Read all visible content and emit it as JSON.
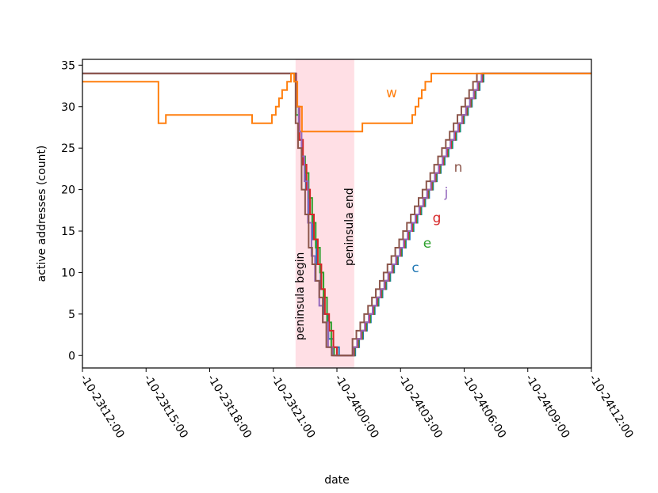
{
  "chart_data": {
    "type": "step",
    "xlabel": "date",
    "ylabel": "active addresses (count)",
    "xlim": [
      "-10-23t12:00",
      "-10-24t12:00"
    ],
    "xticks": [
      "-10-23t12:00",
      "-10-23t15:00",
      "-10-23t18:00",
      "-10-23t21:00",
      "-10-24t00:00",
      "-10-24t03:00",
      "-10-24t06:00",
      "-10-24t09:00",
      "-10-24t12:00"
    ],
    "ylim": [
      -1.5,
      35.7
    ],
    "yticks": [
      0,
      5,
      10,
      15,
      20,
      25,
      30,
      35
    ],
    "span_color": "#ffc0cb",
    "annotations": [
      {
        "text": "peninsula begin",
        "x": "-10-23t22:03"
      },
      {
        "text": "peninsula end",
        "x": "-10-24t00:49"
      }
    ],
    "series": [
      {
        "name": "c",
        "color": "#1f77b4",
        "x": [
          "-10-23t12:00",
          "-10-23t22:04",
          "-10-23t22:12",
          "-10-23t22:22",
          "-10-23t22:32",
          "-10-23t22:42",
          "-10-23t22:52",
          "-10-23t23:02",
          "-10-23t23:14",
          "-10-23t23:24",
          "-10-23t23:36",
          "-10-23t23:50",
          "-10-24t00:06",
          "-10-24t00:52",
          "-10-24t01:03",
          "-10-24t01:14",
          "-10-24t01:25",
          "-10-24t01:36",
          "-10-24t01:47",
          "-10-24t01:58",
          "-10-24t02:09",
          "-10-24t02:20",
          "-10-24t02:31",
          "-10-24t02:42",
          "-10-24t02:53",
          "-10-24t03:04",
          "-10-24t03:15",
          "-10-24t03:26",
          "-10-24t03:37",
          "-10-24t03:48",
          "-10-24t03:59",
          "-10-24t04:10",
          "-10-24t04:21",
          "-10-24t04:32",
          "-10-24t04:43",
          "-10-24t04:54",
          "-10-24t05:05",
          "-10-24t05:16",
          "-10-24t05:27",
          "-10-24t05:38",
          "-10-24t05:49",
          "-10-24t06:00",
          "-10-24t06:11",
          "-10-24t06:22",
          "-10-24t06:33",
          "-10-24t06:44",
          "-10-24t06:55",
          "-10-24t12:00"
        ],
        "values": [
          34,
          30,
          26,
          23,
          20,
          17,
          14,
          11,
          8,
          5,
          2,
          1,
          0,
          1,
          2,
          3,
          4,
          5,
          6,
          7,
          8,
          9,
          10,
          11,
          12,
          13,
          14,
          15,
          16,
          17,
          18,
          19,
          20,
          21,
          22,
          23,
          24,
          25,
          26,
          27,
          28,
          29,
          30,
          31,
          32,
          33,
          34,
          34
        ]
      },
      {
        "name": "e",
        "color": "#2ca02c",
        "x": [
          "-10-23t12:00",
          "-10-23t22:04",
          "-10-23t22:13",
          "-10-23t22:22",
          "-10-23t22:30",
          "-10-23t22:40",
          "-10-23t22:50",
          "-10-23t23:00",
          "-10-23t23:12",
          "-10-23t23:22",
          "-10-23t23:32",
          "-10-23t23:44",
          "-10-23t23:52",
          "-10-24t00:50",
          "-10-24t01:01",
          "-10-24t01:12",
          "-10-24t01:23",
          "-10-24t01:34",
          "-10-24t01:45",
          "-10-24t01:56",
          "-10-24t02:07",
          "-10-24t02:18",
          "-10-24t02:29",
          "-10-24t02:40",
          "-10-24t02:51",
          "-10-24t03:02",
          "-10-24t03:13",
          "-10-24t03:24",
          "-10-24t03:35",
          "-10-24t03:46",
          "-10-24t03:57",
          "-10-24t04:08",
          "-10-24t04:19",
          "-10-24t04:30",
          "-10-24t04:41",
          "-10-24t04:52",
          "-10-24t05:03",
          "-10-24t05:14",
          "-10-24t05:25",
          "-10-24t05:36",
          "-10-24t05:47",
          "-10-24t05:58",
          "-10-24t06:09",
          "-10-24t06:20",
          "-10-24t06:31",
          "-10-24t06:42",
          "-10-24t06:53",
          "-10-24t12:00"
        ],
        "values": [
          34,
          29,
          26,
          24,
          22,
          19,
          16,
          13,
          10,
          7,
          4,
          1,
          0,
          1,
          2,
          3,
          4,
          5,
          6,
          7,
          8,
          9,
          10,
          11,
          12,
          13,
          14,
          15,
          16,
          17,
          18,
          19,
          20,
          21,
          22,
          23,
          24,
          25,
          26,
          27,
          28,
          29,
          30,
          31,
          32,
          33,
          34,
          34
        ]
      },
      {
        "name": "g",
        "color": "#d62728",
        "x": [
          "-10-23t12:00",
          "-10-23t22:05",
          "-10-23t22:14",
          "-10-23t22:24",
          "-10-23t22:34",
          "-10-23t22:44",
          "-10-23t22:55",
          "-10-23t23:06",
          "-10-23t23:16",
          "-10-23t23:26",
          "-10-23t23:38",
          "-10-23t23:50",
          "-10-24t00:00",
          "-10-24t00:48",
          "-10-24t00:59",
          "-10-24t01:10",
          "-10-24t01:21",
          "-10-24t01:32",
          "-10-24t01:43",
          "-10-24t01:54",
          "-10-24t02:05",
          "-10-24t02:16",
          "-10-24t02:27",
          "-10-24t02:38",
          "-10-24t02:49",
          "-10-24t03:00",
          "-10-24t03:11",
          "-10-24t03:22",
          "-10-24t03:33",
          "-10-24t03:44",
          "-10-24t03:55",
          "-10-24t04:06",
          "-10-24t04:17",
          "-10-24t04:28",
          "-10-24t04:39",
          "-10-24t04:50",
          "-10-24t05:01",
          "-10-24t05:12",
          "-10-24t05:23",
          "-10-24t05:34",
          "-10-24t05:45",
          "-10-24t05:56",
          "-10-24t06:07",
          "-10-24t06:18",
          "-10-24t06:29",
          "-10-24t06:40",
          "-10-24t06:51",
          "-10-24t12:00"
        ],
        "values": [
          34,
          30,
          26,
          23,
          20,
          17,
          14,
          11,
          8,
          5,
          3,
          1,
          0,
          1,
          2,
          3,
          4,
          5,
          6,
          7,
          8,
          9,
          10,
          11,
          12,
          13,
          14,
          15,
          16,
          17,
          18,
          19,
          20,
          21,
          22,
          23,
          24,
          25,
          26,
          27,
          28,
          29,
          30,
          31,
          32,
          33,
          34,
          34
        ]
      },
      {
        "name": "j",
        "color": "#9467bd",
        "x": [
          "-10-23t12:00",
          "-10-23t22:04",
          "-10-23t22:12",
          "-10-23t22:20",
          "-10-23t22:28",
          "-10-23t22:38",
          "-10-23t22:48",
          "-10-23t22:58",
          "-10-23t23:10",
          "-10-23t23:20",
          "-10-23t23:35",
          "-10-23t23:48",
          "-10-24t00:46",
          "-10-24t00:57",
          "-10-24t01:08",
          "-10-24t01:19",
          "-10-24t01:30",
          "-10-24t01:41",
          "-10-24t01:52",
          "-10-24t02:03",
          "-10-24t02:14",
          "-10-24t02:25",
          "-10-24t02:36",
          "-10-24t02:47",
          "-10-24t02:58",
          "-10-24t03:09",
          "-10-24t03:20",
          "-10-24t03:31",
          "-10-24t03:42",
          "-10-24t03:53",
          "-10-24t04:04",
          "-10-24t04:15",
          "-10-24t04:26",
          "-10-24t04:37",
          "-10-24t04:48",
          "-10-24t04:59",
          "-10-24t05:10",
          "-10-24t05:21",
          "-10-24t05:32",
          "-10-24t05:43",
          "-10-24t05:54",
          "-10-24t06:05",
          "-10-24t06:16",
          "-10-24t06:27",
          "-10-24t06:38",
          "-10-24t06:49",
          "-10-24t12:00"
        ],
        "values": [
          34,
          30,
          27,
          24,
          21,
          16,
          12,
          9,
          6,
          4,
          1,
          0,
          1,
          2,
          3,
          4,
          5,
          6,
          7,
          8,
          9,
          10,
          11,
          12,
          13,
          14,
          15,
          16,
          17,
          18,
          19,
          20,
          21,
          22,
          23,
          24,
          25,
          26,
          27,
          28,
          29,
          30,
          31,
          32,
          33,
          34,
          34
        ]
      },
      {
        "name": "n",
        "color": "#8c564b",
        "x": [
          "-10-23t12:00",
          "-10-23t22:03",
          "-10-23t22:10",
          "-10-23t22:20",
          "-10-23t22:30",
          "-10-23t22:40",
          "-10-23t22:50",
          "-10-23t23:00",
          "-10-23t23:10",
          "-10-23t23:20",
          "-10-23t23:30",
          "-10-23t23:45",
          "-10-24t00:44",
          "-10-24t00:55",
          "-10-24t01:06",
          "-10-24t01:17",
          "-10-24t01:28",
          "-10-24t01:39",
          "-10-24t01:50",
          "-10-24t02:01",
          "-10-24t02:12",
          "-10-24t02:23",
          "-10-24t02:34",
          "-10-24t02:45",
          "-10-24t02:56",
          "-10-24t03:07",
          "-10-24t03:18",
          "-10-24t03:29",
          "-10-24t03:40",
          "-10-24t03:51",
          "-10-24t04:02",
          "-10-24t04:13",
          "-10-24t04:24",
          "-10-24t04:35",
          "-10-24t04:46",
          "-10-24t04:57",
          "-10-24t05:08",
          "-10-24t05:19",
          "-10-24t05:30",
          "-10-24t05:41",
          "-10-24t05:52",
          "-10-24t06:03",
          "-10-24t06:14",
          "-10-24t06:25",
          "-10-24t06:36",
          "-10-24t06:47",
          "-10-24t12:00"
        ],
        "values": [
          34,
          28,
          25,
          20,
          17,
          13,
          11,
          9,
          7,
          4,
          1,
          0,
          2,
          3,
          4,
          5,
          6,
          7,
          8,
          9,
          10,
          11,
          12,
          13,
          14,
          15,
          16,
          17,
          18,
          19,
          20,
          21,
          22,
          23,
          24,
          25,
          26,
          27,
          28,
          29,
          30,
          31,
          32,
          33,
          34,
          34,
          34
        ]
      },
      {
        "name": "w",
        "color": "#ff7f0e",
        "x": [
          "-10-23t12:00",
          "-10-23t15:35",
          "-10-23t15:56",
          "-10-23t20:00",
          "-10-23t20:56",
          "-10-23t21:07",
          "-10-23t21:16",
          "-10-23t21:25",
          "-10-23t21:39",
          "-10-23t21:50",
          "-10-23t21:59",
          "-10-23t22:08",
          "-10-23t22:21",
          "-10-24t01:12",
          "-10-24t03:33",
          "-10-24t03:42",
          "-10-24t03:51",
          "-10-24t04:00",
          "-10-24t04:10",
          "-10-24t04:27",
          "-10-24t12:00"
        ],
        "values": [
          33,
          28,
          29,
          28,
          29,
          30,
          31,
          32,
          33,
          34,
          33,
          30,
          27,
          28,
          29,
          30,
          31,
          32,
          33,
          34,
          34
        ]
      }
    ]
  }
}
